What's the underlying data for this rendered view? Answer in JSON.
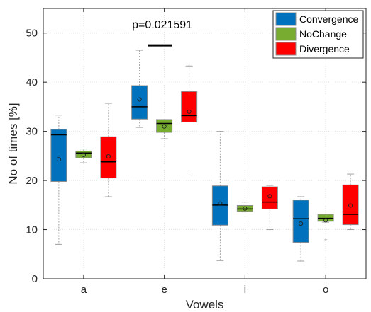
{
  "chart_data": {
    "type": "boxplot",
    "xlabel": "Vowels",
    "ylabel": "No of times [%]",
    "ylim": [
      0,
      55
    ],
    "yticks": [
      0,
      10,
      20,
      30,
      40,
      50
    ],
    "grid": true,
    "legend_position": "top-right",
    "categories": [
      "a",
      "e",
      "i",
      "o"
    ],
    "annotation": {
      "text": "p=0.021591",
      "category": "e",
      "bar_y": 47.5
    },
    "series": [
      {
        "name": "Convergence",
        "color": "#0072BD",
        "boxes": [
          {
            "whisker_low": 7.0,
            "q1": 19.8,
            "median": 29.3,
            "q3": 30.4,
            "whisker_high": 33.3,
            "mean": 24.3,
            "outliers": []
          },
          {
            "whisker_low": 30.8,
            "q1": 32.5,
            "median": 35.0,
            "q3": 39.3,
            "whisker_high": 46.5,
            "mean": 36.5,
            "outliers": []
          },
          {
            "whisker_low": 3.7,
            "q1": 10.9,
            "median": 15.0,
            "q3": 18.9,
            "whisker_high": 30.0,
            "mean": 15.3,
            "outliers": []
          },
          {
            "whisker_low": 3.6,
            "q1": 7.4,
            "median": 12.2,
            "q3": 16.0,
            "whisker_high": 16.7,
            "mean": 11.2,
            "outliers": []
          }
        ]
      },
      {
        "name": "NoChange",
        "color": "#77AC30",
        "boxes": [
          {
            "whisker_low": 23.6,
            "q1": 24.6,
            "median": 25.6,
            "q3": 26.0,
            "whisker_high": 26.4,
            "mean": 25.2,
            "outliers": []
          },
          {
            "whisker_low": 28.5,
            "q1": 29.8,
            "median": 31.6,
            "q3": 32.4,
            "whisker_high": 32.4,
            "mean": 31.0,
            "outliers": []
          },
          {
            "whisker_low": 13.6,
            "q1": 13.7,
            "median": 14.2,
            "q3": 14.9,
            "whisker_high": 15.6,
            "mean": 14.3,
            "outliers": []
          },
          {
            "whisker_low": 11.5,
            "q1": 11.7,
            "median": 12.3,
            "q3": 13.1,
            "whisker_high": 13.1,
            "mean": 11.9,
            "outliers": [
              8.0
            ]
          }
        ]
      },
      {
        "name": "Divergence",
        "color": "#FF0000",
        "boxes": [
          {
            "whisker_low": 16.7,
            "q1": 20.5,
            "median": 23.8,
            "q3": 28.9,
            "whisker_high": 35.7,
            "mean": 24.9,
            "outliers": []
          },
          {
            "whisker_low": 31.9,
            "q1": 31.9,
            "median": 33.2,
            "q3": 38.1,
            "whisker_high": 43.3,
            "mean": 34.0,
            "outliers": [
              21.2
            ]
          },
          {
            "whisker_low": 10.0,
            "q1": 14.2,
            "median": 15.6,
            "q3": 18.7,
            "whisker_high": 19.0,
            "mean": 16.8,
            "outliers": []
          },
          {
            "whisker_low": 10.0,
            "q1": 11.0,
            "median": 13.1,
            "q3": 19.1,
            "whisker_high": 21.3,
            "mean": 14.9,
            "outliers": []
          }
        ]
      }
    ]
  }
}
